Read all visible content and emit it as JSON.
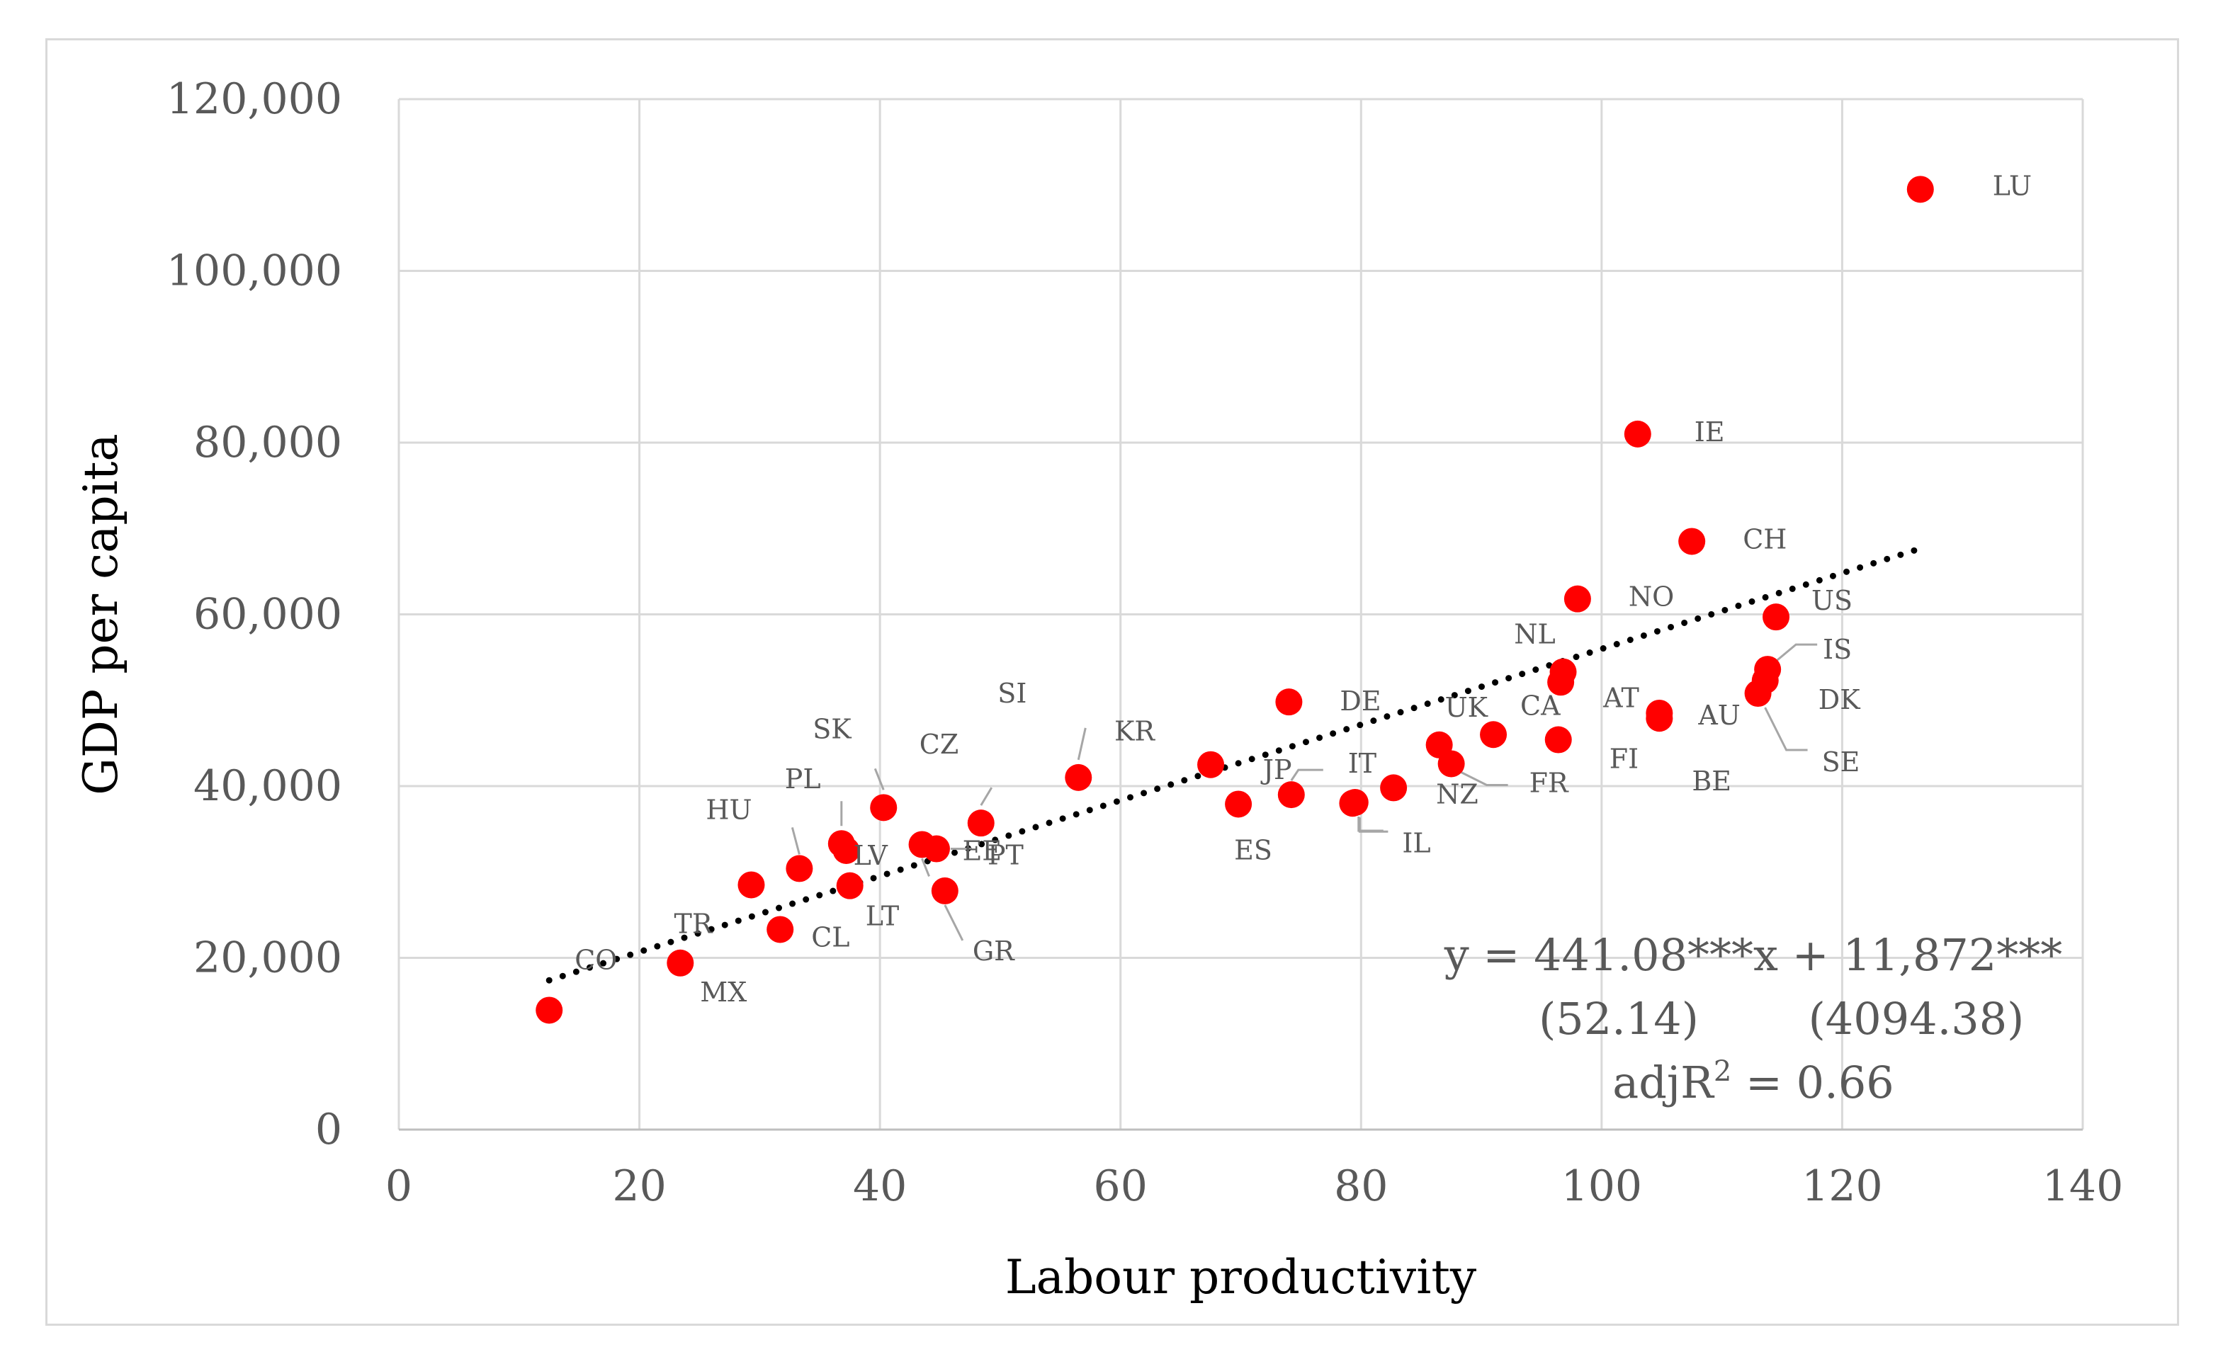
{
  "chart_data": {
    "type": "scatter",
    "xlabel": "Labour productivity",
    "ylabel": "GDP per capita",
    "xlim": [
      0,
      140
    ],
    "ylim": [
      0,
      120000
    ],
    "x_ticks": [
      0,
      20,
      40,
      60,
      80,
      100,
      120,
      140
    ],
    "y_ticks": [
      0,
      20000,
      40000,
      60000,
      80000,
      100000,
      120000
    ],
    "x_tick_labels": [
      "0",
      "20",
      "40",
      "60",
      "80",
      "100",
      "120",
      "140"
    ],
    "y_tick_labels": [
      "0",
      "20,000",
      "40,000",
      "60,000",
      "80,000",
      "100,000",
      "120,000"
    ],
    "grid": true,
    "marker_color": "#ff0000",
    "trendline": {
      "slope": 441.08,
      "intercept": 11872,
      "x_range": [
        12.5,
        126.5
      ],
      "style": "dotted",
      "color": "#000000"
    },
    "equation": {
      "line1": "y = 441.08***x + 11,872***",
      "line2_se_slope": "(52.14)",
      "line2_se_intercept": "(4094.38)",
      "r2_prefix": "adjR",
      "r2_sup": "2",
      "r2_value": " = 0.66"
    },
    "points": [
      {
        "label": "LU",
        "x": 126.5,
        "y": 109500
      },
      {
        "label": "IE",
        "x": 103.0,
        "y": 81000
      },
      {
        "label": "CH",
        "x": 107.5,
        "y": 68500
      },
      {
        "label": "NO",
        "x": 98.0,
        "y": 61800
      },
      {
        "label": "US",
        "x": 114.5,
        "y": 59700
      },
      {
        "label": "IS",
        "x": 113.8,
        "y": 53600
      },
      {
        "label": "DK",
        "x": 113.6,
        "y": 52300
      },
      {
        "label": "SE",
        "x": 113.0,
        "y": 50800
      },
      {
        "label": "NL",
        "x": 96.8,
        "y": 53300
      },
      {
        "label": "AT",
        "x": 96.6,
        "y": 52100
      },
      {
        "label": "AU",
        "x": 104.8,
        "y": 48500
      },
      {
        "label": "BE",
        "x": 104.8,
        "y": 47900
      },
      {
        "label": "FI",
        "x": 96.4,
        "y": 45400
      },
      {
        "label": "CA",
        "x": 91.0,
        "y": 46000
      },
      {
        "label": "UK",
        "x": 86.5,
        "y": 44800
      },
      {
        "label": "FR",
        "x": 87.5,
        "y": 42600
      },
      {
        "label": "NZ",
        "x": 82.7,
        "y": 39800
      },
      {
        "label": "DE",
        "x": 74.0,
        "y": 49800
      },
      {
        "label": "JP",
        "x": 74.2,
        "y": 39000
      },
      {
        "label": "IT",
        "x": 79.5,
        "y": 38100
      },
      {
        "label": "IL",
        "x": 79.3,
        "y": 38000
      },
      {
        "label": "ES",
        "x": 69.8,
        "y": 37900
      },
      {
        "label": "KR",
        "x": 67.5,
        "y": 42500
      },
      {
        "label": "SI",
        "x": 56.5,
        "y": 41000
      },
      {
        "label": "CZ",
        "x": 48.4,
        "y": 35700
      },
      {
        "label": "EE",
        "x": 43.5,
        "y": 33200
      },
      {
        "label": "PT",
        "x": 44.7,
        "y": 32700
      },
      {
        "label": "GR",
        "x": 45.4,
        "y": 27800
      },
      {
        "label": "SK",
        "x": 40.3,
        "y": 37500
      },
      {
        "label": "LV",
        "x": 37.2,
        "y": 32500
      },
      {
        "label": "LT",
        "x": 37.5,
        "y": 28400
      },
      {
        "label": "PL",
        "x": 36.8,
        "y": 33300
      },
      {
        "label": "HU",
        "x": 33.3,
        "y": 30400
      },
      {
        "label": "TR",
        "x": 29.3,
        "y": 28500
      },
      {
        "label": "CL",
        "x": 31.7,
        "y": 23300
      },
      {
        "label": "MX",
        "x": 23.4,
        "y": 19400
      },
      {
        "label": "CO",
        "x": 12.5,
        "y": 13900
      }
    ]
  }
}
